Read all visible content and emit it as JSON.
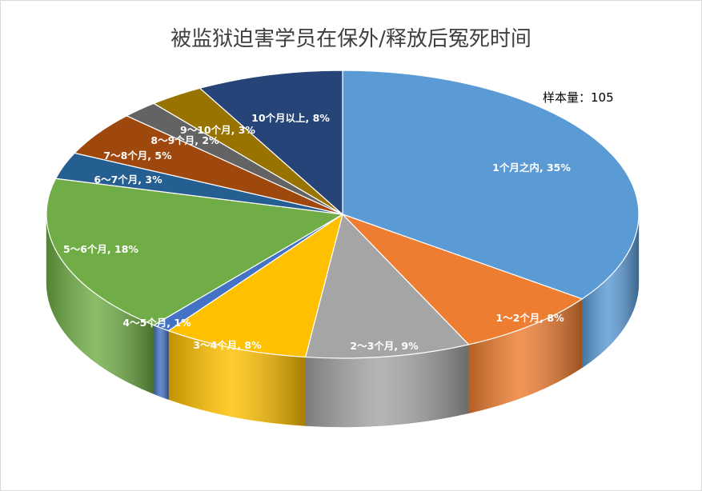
{
  "chart_data": {
    "type": "pie",
    "title": "被监狱迫害学员在保外/释放后冤死时间",
    "annotation": "样本量：105",
    "categories": [
      "1个月之内",
      "1～2个月",
      "2～3个月",
      "3～4个月",
      "4～5个月",
      "5～6个月",
      "6～7个月",
      "7～8个月",
      "8～9个月",
      "9～10个月",
      "10个月以上"
    ],
    "values": [
      35,
      8,
      9,
      8,
      1,
      18,
      3,
      5,
      2,
      3,
      8
    ],
    "labels": [
      "1个月之内, 35%",
      "1～2个月, 8%",
      "2～3个月, 9%",
      "3～4个月, 8%",
      "4～5个月, 1%",
      "5～6个月, 18%",
      "6～7个月, 3%",
      "7～8个月, 5%",
      "8～9个月, 2%",
      "9～10个月, 3%",
      "10个月以上, 8%"
    ],
    "colors": [
      "#5b9bd5",
      "#ed7d31",
      "#a5a5a5",
      "#ffc000",
      "#4472c4",
      "#70ad47",
      "#255e91",
      "#9e480e",
      "#636363",
      "#997300",
      "#264478"
    ],
    "side_colors": [
      "#1f3f5e",
      "#6b3410",
      "#555555",
      "#b98a00",
      "#2f4f9a",
      "#4a7a2c",
      "#183d5e",
      "#5a2a08",
      "#3c3c3c",
      "#6a5000",
      "#172a4a"
    ],
    "grid": false,
    "legend": "none"
  }
}
